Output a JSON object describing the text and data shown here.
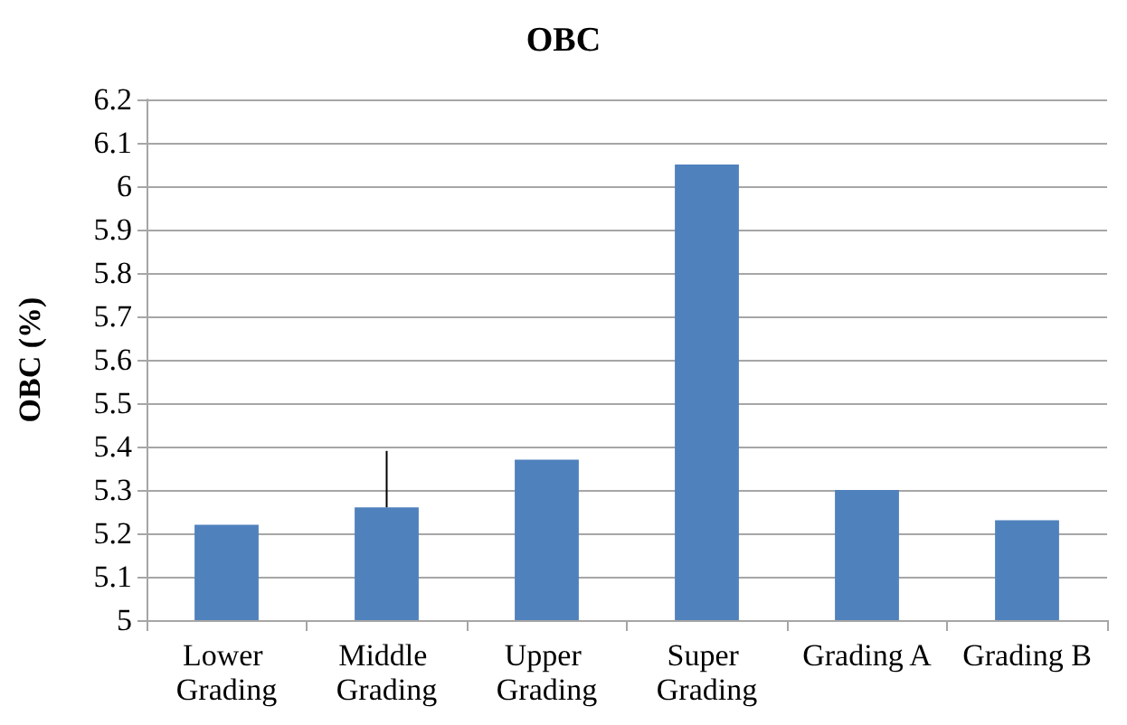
{
  "chart_data": {
    "type": "bar",
    "title": "OBC",
    "ylabel": "OBC (%)",
    "categories": [
      "Lower Grading",
      "Middle Grading",
      "Upper Grading",
      "Super Grading",
      "Grading A",
      "Grading B"
    ],
    "values": [
      5.22,
      5.26,
      5.37,
      6.05,
      5.3,
      5.23
    ],
    "color": "#4f81bd",
    "errors": [
      null,
      [
        5.26,
        5.39
      ],
      null,
      null,
      null,
      null
    ],
    "ylim": [
      5,
      6.2
    ],
    "yticks": [
      5,
      5.1,
      5.2,
      5.3,
      5.4,
      5.5,
      5.6,
      5.7,
      5.8,
      5.9,
      6,
      6.1,
      6.2
    ],
    "grid": "y"
  }
}
